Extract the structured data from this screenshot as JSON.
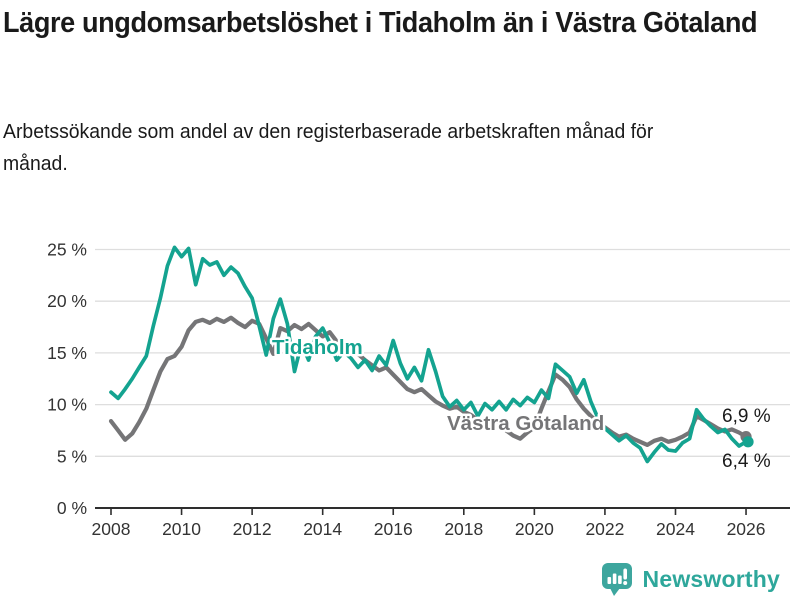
{
  "header": {
    "title": "Lägre ungdomsarbetslöshet i Tidaholm än i Västra Götaland",
    "subtitle": "Arbetssökande som andel av den registerbaserade arbetskraften månad för månad."
  },
  "footer": {
    "brand": "Newsworthy",
    "brand_color": "#2ea79b"
  },
  "chart_data": {
    "type": "line",
    "title": "Lägre ungdomsarbetslöshet i Tidaholm än i Västra Götaland",
    "xlabel": "",
    "ylabel": "",
    "xlim": [
      2008,
      2027.2
    ],
    "ylim": [
      0,
      26
    ],
    "grid": "horizontal-only",
    "legend": "inline-series-labels",
    "x_ticks": [
      2008,
      2010,
      2012,
      2014,
      2016,
      2018,
      2020,
      2022,
      2024,
      2026
    ],
    "y_ticks": [
      {
        "v": 0,
        "label": "0 %"
      },
      {
        "v": 5,
        "label": "5 %"
      },
      {
        "v": 10,
        "label": "10 %"
      },
      {
        "v": 15,
        "label": "15 %"
      },
      {
        "v": 20,
        "label": "20 %"
      },
      {
        "v": 25,
        "label": "25 %"
      }
    ],
    "x": [
      2008.0,
      2008.2,
      2008.4,
      2008.6,
      2008.8,
      2009.0,
      2009.2,
      2009.4,
      2009.6,
      2009.8,
      2010.0,
      2010.2,
      2010.4,
      2010.6,
      2010.8,
      2011.0,
      2011.2,
      2011.4,
      2011.6,
      2011.8,
      2012.0,
      2012.2,
      2012.4,
      2012.6,
      2012.8,
      2013.0,
      2013.2,
      2013.4,
      2013.6,
      2013.8,
      2014.0,
      2014.2,
      2014.4,
      2014.6,
      2014.8,
      2015.0,
      2015.2,
      2015.4,
      2015.6,
      2015.8,
      2016.0,
      2016.2,
      2016.4,
      2016.6,
      2016.8,
      2017.0,
      2017.2,
      2017.4,
      2017.6,
      2017.8,
      2018.0,
      2018.2,
      2018.4,
      2018.6,
      2018.8,
      2019.0,
      2019.2,
      2019.4,
      2019.6,
      2019.8,
      2020.0,
      2020.2,
      2020.4,
      2020.6,
      2020.8,
      2021.0,
      2021.2,
      2021.4,
      2021.6,
      2021.8,
      2022.0,
      2022.2,
      2022.4,
      2022.6,
      2022.8,
      2023.0,
      2023.2,
      2023.4,
      2023.6,
      2023.8,
      2024.0,
      2024.2,
      2024.4,
      2024.6,
      2024.8,
      2025.0,
      2025.2,
      2025.4,
      2025.6,
      2025.8,
      2026.0
    ],
    "series": [
      {
        "name": "Tidaholm",
        "color": "#14a390",
        "end_label": "6,4 %",
        "end_value": 6.4,
        "values": [
          11.2,
          10.6,
          11.5,
          12.5,
          13.6,
          14.7,
          17.6,
          20.3,
          23.4,
          25.2,
          24.3,
          25.1,
          21.6,
          24.1,
          23.5,
          23.8,
          22.5,
          23.3,
          22.7,
          21.4,
          20.3,
          17.6,
          14.8,
          18.3,
          20.2,
          17.8,
          13.2,
          15.9,
          14.3,
          16.6,
          17.4,
          16.0,
          14.3,
          15.1,
          14.5,
          13.6,
          14.3,
          13.3,
          14.7,
          13.8,
          16.2,
          14.0,
          12.5,
          13.6,
          12.3,
          15.3,
          13.2,
          10.8,
          9.8,
          10.4,
          9.5,
          10.2,
          8.9,
          10.1,
          9.5,
          10.3,
          9.5,
          10.5,
          9.9,
          10.7,
          10.2,
          11.4,
          10.6,
          13.9,
          13.3,
          12.7,
          11.1,
          12.4,
          10.3,
          8.7,
          7.7,
          7.1,
          6.5,
          7.0,
          6.3,
          5.8,
          4.5,
          5.4,
          6.2,
          5.6,
          5.5,
          6.3,
          6.7,
          9.5,
          8.6,
          7.9,
          7.3,
          7.6,
          6.7,
          6.0,
          6.4
        ]
      },
      {
        "name": "Västra Götaland",
        "color": "#757577",
        "end_label": "6,9 %",
        "end_value": 6.9,
        "values": [
          8.4,
          7.5,
          6.6,
          7.2,
          8.3,
          9.6,
          11.4,
          13.2,
          14.4,
          14.7,
          15.6,
          17.2,
          18.0,
          18.2,
          17.9,
          18.3,
          18.0,
          18.4,
          17.9,
          17.5,
          18.1,
          17.8,
          16.4,
          14.9,
          17.4,
          17.1,
          17.7,
          17.3,
          17.8,
          17.2,
          16.6,
          17.0,
          16.1,
          15.3,
          15.7,
          14.9,
          14.3,
          13.8,
          13.3,
          13.6,
          12.9,
          12.2,
          11.5,
          11.2,
          11.5,
          10.9,
          10.3,
          9.9,
          9.6,
          9.8,
          9.3,
          9.0,
          8.5,
          8.1,
          8.3,
          7.9,
          7.5,
          7.0,
          6.7,
          7.3,
          7.8,
          9.6,
          11.3,
          12.9,
          12.4,
          11.7,
          10.5,
          9.6,
          8.9,
          8.3,
          7.8,
          7.3,
          6.9,
          7.1,
          6.7,
          6.4,
          6.1,
          6.5,
          6.7,
          6.4,
          6.6,
          6.9,
          7.3,
          8.9,
          8.5,
          8.1,
          7.7,
          7.4,
          7.6,
          7.3,
          6.9
        ]
      }
    ]
  }
}
